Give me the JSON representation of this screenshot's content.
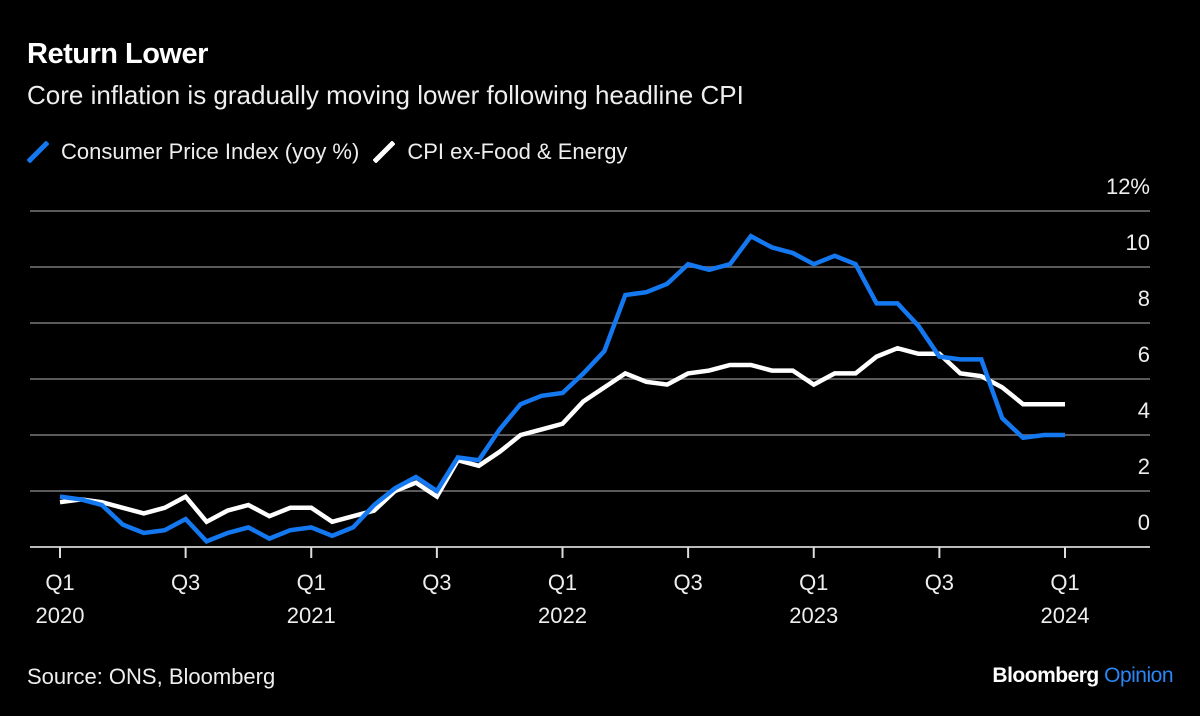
{
  "title": "Return Lower",
  "subtitle": "Core inflation is gradually moving lower following headline CPI",
  "source": "Source: ONS, Bloomberg",
  "logo": {
    "brand": "Bloomberg",
    "product": "Opinion"
  },
  "colors": {
    "cpi": "#1478f0",
    "core": "#ffffff",
    "grid": "#5a5a5a",
    "background": "#000000"
  },
  "chart_data": {
    "type": "line",
    "title": "Return Lower",
    "subtitle": "Core inflation is gradually moving lower following headline CPI",
    "x_start": "2020-01",
    "x_end": "2024-01",
    "frequency": "monthly",
    "x_tick_labels": [
      {
        "q": "Q1",
        "year": "2020",
        "month": "2020-01"
      },
      {
        "q": "Q3",
        "year": "",
        "month": "2020-07"
      },
      {
        "q": "Q1",
        "year": "2021",
        "month": "2021-01"
      },
      {
        "q": "Q3",
        "year": "",
        "month": "2021-07"
      },
      {
        "q": "Q1",
        "year": "2022",
        "month": "2022-01"
      },
      {
        "q": "Q3",
        "year": "",
        "month": "2022-07"
      },
      {
        "q": "Q1",
        "year": "2023",
        "month": "2023-01"
      },
      {
        "q": "Q3",
        "year": "",
        "month": "2023-07"
      },
      {
        "q": "Q1",
        "year": "2024",
        "month": "2024-01"
      }
    ],
    "y_ticks": [
      "0",
      "2",
      "4",
      "6",
      "8",
      "10",
      "12%"
    ],
    "ylim": [
      0,
      12
    ],
    "y_axis_position": "right",
    "grid": true,
    "legend_position": "top-left",
    "series": [
      {
        "name": "Consumer Price Index (yoy %)",
        "color": "#1478f0",
        "values": [
          1.8,
          1.7,
          1.5,
          0.8,
          0.5,
          0.6,
          1.0,
          0.2,
          0.5,
          0.7,
          0.3,
          0.6,
          0.7,
          0.4,
          0.7,
          1.5,
          2.1,
          2.5,
          2.0,
          3.2,
          3.1,
          4.2,
          5.1,
          5.4,
          5.5,
          6.2,
          7.0,
          9.0,
          9.1,
          9.4,
          10.1,
          9.9,
          10.1,
          11.1,
          10.7,
          10.5,
          10.1,
          10.4,
          10.1,
          8.7,
          8.7,
          7.9,
          6.8,
          6.7,
          6.7,
          4.6,
          3.9,
          4.0,
          4.0
        ]
      },
      {
        "name": "CPI ex-Food & Energy",
        "color": "#ffffff",
        "values": [
          1.6,
          1.7,
          1.6,
          1.4,
          1.2,
          1.4,
          1.8,
          0.9,
          1.3,
          1.5,
          1.1,
          1.4,
          1.4,
          0.9,
          1.1,
          1.3,
          2.0,
          2.3,
          1.8,
          3.1,
          2.9,
          3.4,
          4.0,
          4.2,
          4.4,
          5.2,
          5.7,
          6.2,
          5.9,
          5.8,
          6.2,
          6.3,
          6.5,
          6.5,
          6.3,
          6.3,
          5.8,
          6.2,
          6.2,
          6.8,
          7.1,
          6.9,
          6.9,
          6.2,
          6.1,
          5.7,
          5.1,
          5.1,
          5.1
        ]
      }
    ]
  }
}
